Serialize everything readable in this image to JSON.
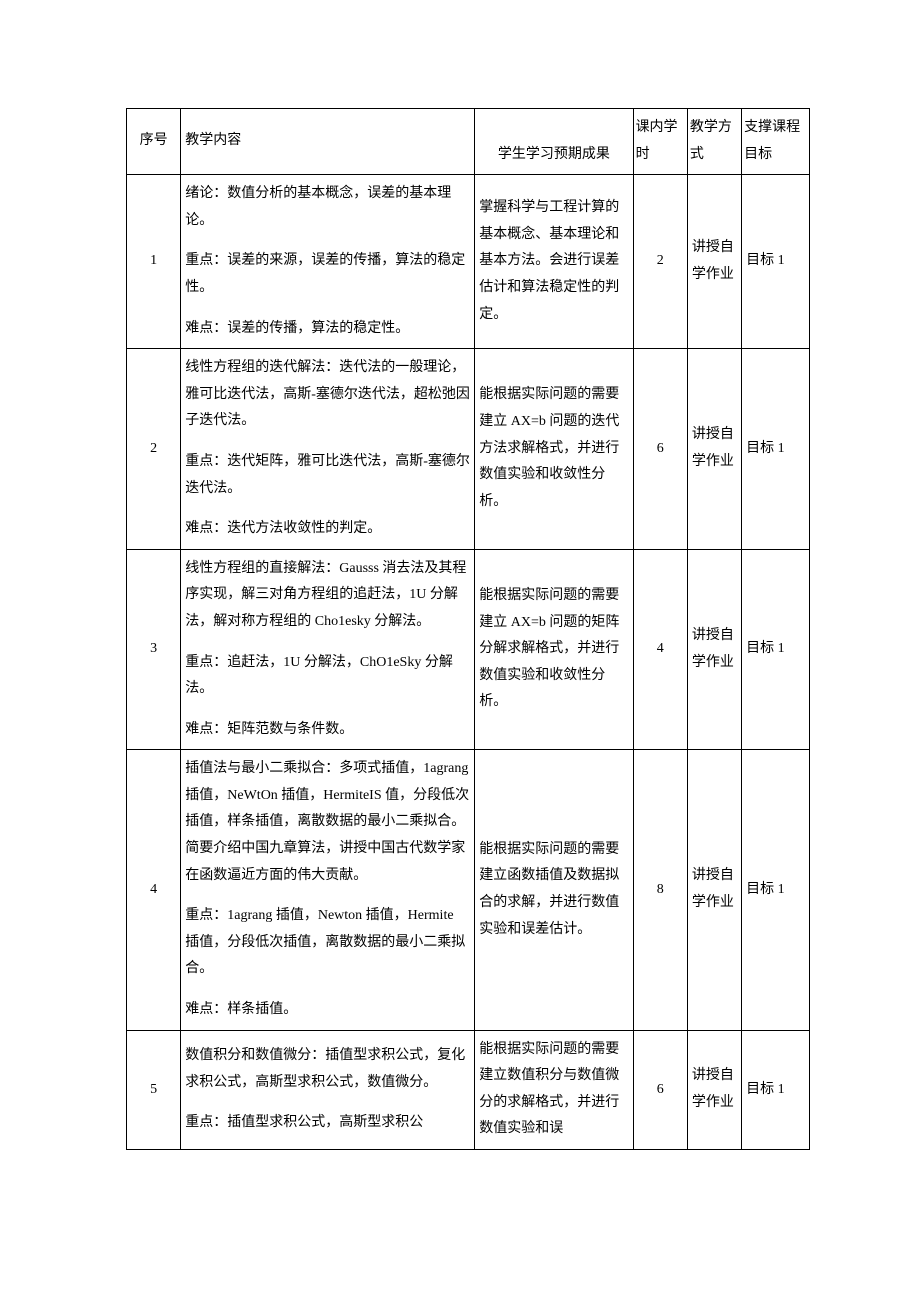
{
  "table": {
    "headers": {
      "num": "序号",
      "content": "教学内容",
      "outcome": "学生学习预期成果",
      "hours": "课内学时",
      "method": "教学方式",
      "goal": "支撑课程目标"
    },
    "rows": [
      {
        "num": "1",
        "content_p1": "绪论：数值分析的基本概念，误差的基本理论。",
        "content_p2": "重点：误差的来源，误差的传播，算法的稳定性。",
        "content_p3": "难点：误差的传播，算法的稳定性。",
        "outcome": "掌握科学与工程计算的基本概念、基本理论和基本方法。会进行误差估计和算法稳定性的判定。",
        "hours": "2",
        "method": "讲授自学作业",
        "goal": "目标 1"
      },
      {
        "num": "2",
        "content_p1": "线性方程组的迭代解法：迭代法的一般理论，雅可比迭代法，高斯-塞德尔迭代法，超松弛因子迭代法。",
        "content_p2": "重点：迭代矩阵，雅可比迭代法，高斯-塞德尔迭代法。",
        "content_p3": "难点：迭代方法收敛性的判定。",
        "outcome": "能根据实际问题的需要建立 AX=b 问题的迭代方法求解格式，并进行数值实验和收敛性分析。",
        "hours": "6",
        "method": "讲授自学作业",
        "goal": "目标 1"
      },
      {
        "num": "3",
        "content_p1": "线性方程组的直接解法：Gausss 消去法及其程序实现，解三对角方程组的追赶法，1U 分解法，解对称方程组的 Cho1esky 分解法。",
        "content_p2": "重点：追赶法，1U 分解法，ChO1eSky 分解法。",
        "content_p3": "难点：矩阵范数与条件数。",
        "outcome": "能根据实际问题的需要建立 AX=b 问题的矩阵分解求解格式，并进行数值实验和收敛性分析。",
        "hours": "4",
        "method": "讲授自学作业",
        "goal": "目标 1"
      },
      {
        "num": "4",
        "content_p1": "插值法与最小二乘拟合：多项式插值，1agrang 插值，NeWtOn 插值，HermiteIS 值，分段低次插值，样条插值，离散数据的最小二乘拟合。简要介绍中国九章算法，讲授中国古代数学家在函数逼近方面的伟大贡献。",
        "content_p2": "重点：1agrang 插值，Newton 插值，Hermite 插值，分段低次插值，离散数据的最小二乘拟合。",
        "content_p3": "难点：样条插值。",
        "outcome": "能根据实际问题的需要建立函数插值及数据拟合的求解，并进行数值实验和误差估计。",
        "hours": "8",
        "method": "讲授自学作业",
        "goal": "目标 1"
      },
      {
        "num": "5",
        "content_p1": "数值积分和数值微分：插值型求积公式，复化求积公式，高斯型求积公式，数值微分。",
        "content_p2": "重点：插值型求积公式，高斯型求积公",
        "outcome": "能根据实际问题的需要建立数值积分与数值微分的求解格式，并进行数值实验和误",
        "hours": "6",
        "method": "讲授自学作业",
        "goal": "目标 1"
      }
    ]
  }
}
